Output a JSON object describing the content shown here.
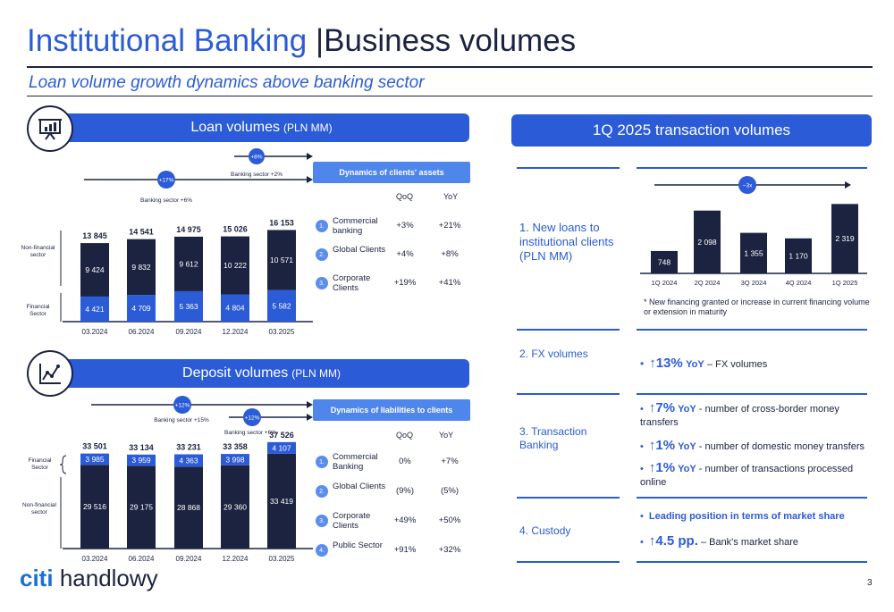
{
  "header": {
    "title_part1": "Institutional Banking",
    "title_sep": "|",
    "title_part2": "Business volumes",
    "subtitle": "Loan volume growth dynamics above banking sector"
  },
  "loans": {
    "banner_title": "Loan volumes",
    "banner_unit": "(PLN MM)",
    "icon": "presentation-chart-icon",
    "growth_badge_1": "+17%",
    "sector_note_1": "Banking sector +6%",
    "growth_badge_2": "+8%",
    "sector_note_2": "Banking sector +2%",
    "label_nonfinancial": "Non-financial sector",
    "label_financial": "Financial Sector",
    "table": {
      "title": "Dynamics of clients' assets",
      "col1": "QoQ",
      "col2": "YoY",
      "rows": [
        {
          "num": "1.",
          "label": "Commercial banking",
          "qoq": "+3%",
          "yoy": "+21%"
        },
        {
          "num": "2.",
          "label": "Global Clients",
          "qoq": "+4%",
          "yoy": "+8%"
        },
        {
          "num": "3.",
          "label": "Corporate Clients",
          "qoq": "+19%",
          "yoy": "+41%"
        }
      ]
    }
  },
  "deposits": {
    "banner_title": "Deposit volumes",
    "banner_unit": "(PLN MM)",
    "icon": "line-chart-icon",
    "growth_badge_1": "+12%",
    "sector_note_1": "Banking sector +15%",
    "growth_badge_2": "+12%",
    "sector_note_2": "Banking sector +6%",
    "label_financial": "Financial Sector",
    "label_nonfinancial": "Non-financial sector",
    "table": {
      "title": "Dynamics of liabilities to clients",
      "col1": "QoQ",
      "col2": "YoY",
      "rows": [
        {
          "num": "1.",
          "label": "Commercial Banking",
          "qoq": "0%",
          "yoy": "+7%"
        },
        {
          "num": "2.",
          "label": "Global Clients",
          "qoq": "(9%)",
          "yoy": "(5%)"
        },
        {
          "num": "3.",
          "label": "Corporate Clients",
          "qoq": "+49%",
          "yoy": "+50%"
        },
        {
          "num": "4.",
          "label": "Public Sector",
          "qoq": "+91%",
          "yoy": "+32%"
        }
      ]
    }
  },
  "transactions": {
    "banner_title": "1Q 2025 transaction volumes",
    "growth_badge": "~3x",
    "section1_label": "1. New loans to institutional clients (PLN MM)",
    "note": "* New financing granted or increase in current financing volume or extension in maturity",
    "section2_label": "2. FX volumes",
    "fx_arrow": "↑13%",
    "fx_yoy": "YoY",
    "fx_text": "– FX volumes",
    "section3_label": "3. Transaction Banking",
    "tb_items": [
      {
        "arrow": "↑7%",
        "yoy": "YoY",
        "text": "- number of cross-border money transfers"
      },
      {
        "arrow": "↑1%",
        "yoy": "YoY",
        "text": "- number of domestic money transfers"
      },
      {
        "arrow": "↑1%",
        "yoy": "YoY",
        "text": "- number of transactions processed online"
      }
    ],
    "section4_label": "4. Custody",
    "custody_1": "Leading position in terms of market share",
    "custody_2_arrow": "↑4.5 pp.",
    "custody_2_text": "– Bank's market share"
  },
  "footer": {
    "logo_citi": "citi",
    "logo_rest": "handlowy",
    "page_number": "3"
  },
  "colors": {
    "navy": "#1c2340",
    "blue": "#2b5bd6",
    "light_blue": "#4f86ec"
  },
  "chart_data": [
    {
      "type": "bar",
      "title": "Loan volumes (PLN MM)",
      "stacked": true,
      "categories": [
        "03.2024",
        "06.2024",
        "09.2024",
        "12.2024",
        "03.2025"
      ],
      "series": [
        {
          "name": "Financial Sector",
          "values": [
            4421,
            4709,
            5363,
            4804,
            5582
          ],
          "color": "#2b5bd6"
        },
        {
          "name": "Non-financial sector",
          "values": [
            9424,
            9832,
            9612,
            10222,
            10571
          ],
          "color": "#1c2340"
        }
      ],
      "totals": [
        13845,
        14541,
        14975,
        15026,
        16153
      ],
      "labels": {
        "financial": [
          "4 421",
          "4 709",
          "5 363",
          "4 804",
          "5 582"
        ],
        "nonfinancial": [
          "9 424",
          "9 832",
          "9 612",
          "10 222",
          "10 571"
        ],
        "totals": [
          "13 845",
          "14 541",
          "14 975",
          "15 026",
          "16 153"
        ]
      }
    },
    {
      "type": "bar",
      "title": "Deposit volumes (PLN MM)",
      "stacked": true,
      "categories": [
        "03.2024",
        "06.2024",
        "09.2024",
        "12.2024",
        "03.2025"
      ],
      "series": [
        {
          "name": "Non-financial sector",
          "values": [
            29516,
            29175,
            28868,
            29360,
            33419
          ],
          "color": "#1c2340"
        },
        {
          "name": "Financial Sector",
          "values": [
            3985,
            3959,
            4363,
            3998,
            4107
          ],
          "color": "#2b5bd6"
        }
      ],
      "totals": [
        33501,
        33134,
        33231,
        33358,
        37526
      ],
      "labels": {
        "financial": [
          "3 985",
          "3 959",
          "4 363",
          "3 998",
          "4 107"
        ],
        "nonfinancial": [
          "29 516",
          "29 175",
          "28 868",
          "29 360",
          "33 419"
        ],
        "totals": [
          "33 501",
          "33 134",
          "33 231",
          "33 358",
          "37 526"
        ]
      }
    },
    {
      "type": "bar",
      "title": "New loans to institutional clients (PLN MM)",
      "categories": [
        "1Q 2024",
        "2Q 2024",
        "3Q 2024",
        "4Q 2024",
        "1Q 2025"
      ],
      "values": [
        748,
        2098,
        1355,
        1170,
        2319
      ],
      "labels": [
        "748",
        "2 098",
        "1 355",
        "1 170",
        "2 319"
      ],
      "color": "#1c2340"
    }
  ]
}
